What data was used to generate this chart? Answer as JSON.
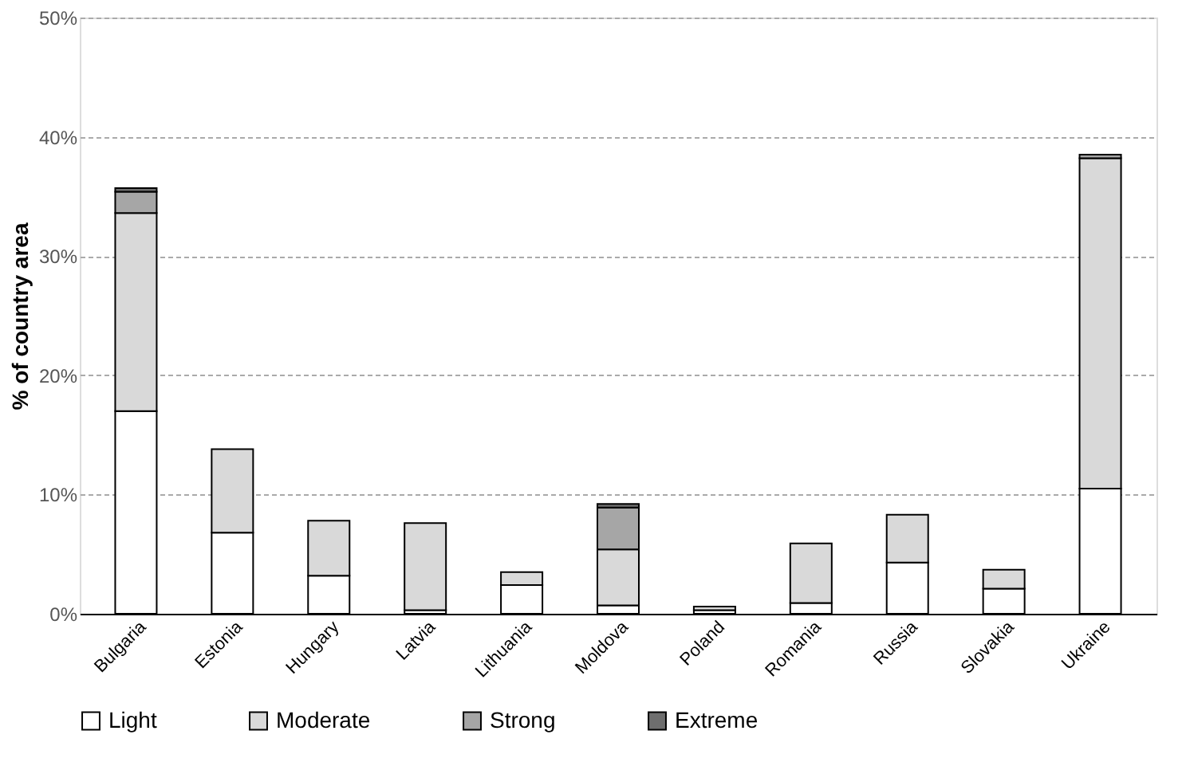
{
  "chart_data": {
    "type": "bar",
    "stacked": true,
    "ylabel": "% of country area",
    "categories": [
      "Bulgaria",
      "Estonia",
      "Hungary",
      "Latvia",
      "Lithuania",
      "Moldova",
      "Poland",
      "Romania",
      "Russia",
      "Slovakia",
      "Ukraine"
    ],
    "series": [
      {
        "name": "Light",
        "color": "#ffffff",
        "values": [
          17.0,
          6.8,
          3.2,
          0.3,
          2.4,
          0.7,
          0.3,
          0.9,
          4.3,
          2.1,
          10.5
        ]
      },
      {
        "name": "Moderate",
        "color": "#d9d9d9",
        "values": [
          16.6,
          7.0,
          4.6,
          7.3,
          1.1,
          4.7,
          0.3,
          5.0,
          4.0,
          1.6,
          27.7
        ]
      },
      {
        "name": "Strong",
        "color": "#a6a6a6",
        "values": [
          1.8,
          0,
          0,
          0,
          0,
          3.5,
          0,
          0,
          0,
          0,
          0.3
        ]
      },
      {
        "name": "Extreme",
        "color": "#6e6e6e",
        "values": [
          0.3,
          0,
          0,
          0,
          0,
          0.3,
          0,
          0,
          0,
          0,
          0
        ]
      }
    ],
    "ylim": [
      0,
      50
    ],
    "yticks": [
      {
        "value": 0,
        "label": "0%"
      },
      {
        "value": 10,
        "label": "10%"
      },
      {
        "value": 20,
        "label": "20%"
      },
      {
        "value": 30,
        "label": "30%"
      },
      {
        "value": 40,
        "label": "40%"
      },
      {
        "value": 50,
        "label": "50%"
      }
    ],
    "grid": "y",
    "legend": "bottom"
  }
}
